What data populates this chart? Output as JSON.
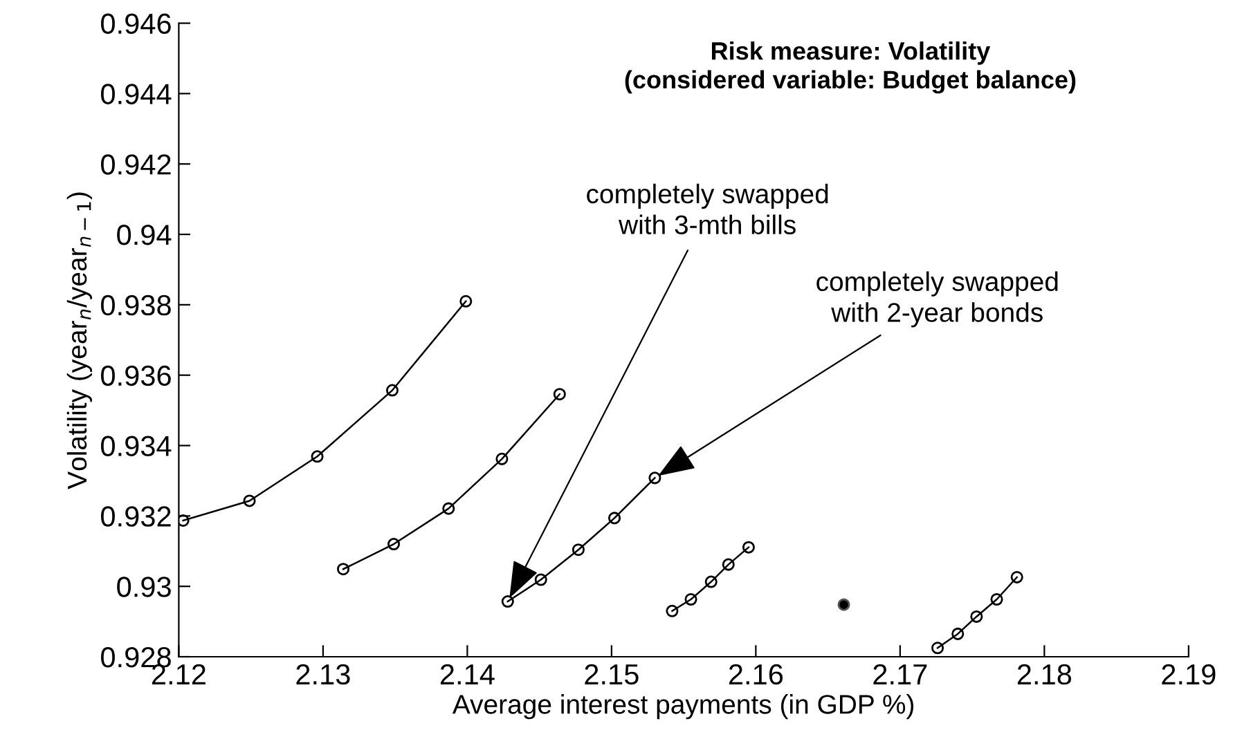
{
  "chart_data": {
    "type": "line",
    "title": "Risk measure: Volatility\n(considered variable: Budget balance)",
    "xlabel": "Average interest payments (in GDP %)",
    "ylabel": "Volatility (year$_{n}$/year$_{n−1}$)",
    "series": [
      {
        "color": "#000000",
        "x": [
          2.1203,
          2.1249,
          2.1296,
          2.1348,
          2.1399
        ],
        "values": [
          0.93187,
          0.93243,
          0.93369,
          0.93557,
          0.9381
        ]
      },
      {
        "color": "#000000",
        "x": [
          2.1314,
          2.1349,
          2.1387,
          2.1424,
          2.1464
        ],
        "values": [
          0.93049,
          0.9312,
          0.93221,
          0.93362,
          0.93546
        ]
      },
      {
        "color": "#000000",
        "x": [
          2.1428,
          2.1451,
          2.1477,
          2.1502,
          2.153
        ],
        "values": [
          0.92957,
          0.93019,
          0.93104,
          0.93194,
          0.93308
        ]
      },
      {
        "color": "#000000",
        "x": [
          2.1542,
          2.1555,
          2.1569,
          2.1581,
          2.1595
        ],
        "values": [
          0.9293,
          0.92963,
          0.93013,
          0.93062,
          0.93111
        ]
      },
      {
        "type": "scatter",
        "color": "#000000",
        "x": [
          2.1661
        ],
        "values": [
          0.92948
        ]
      },
      {
        "color": "#000000",
        "x": [
          2.1726,
          2.174,
          2.1753,
          2.1767,
          2.1781
        ],
        "values": [
          0.92825,
          0.92865,
          0.92914,
          0.92963,
          0.93026
        ]
      }
    ],
    "annotations": [
      {
        "text": "completely swapped\nwith 3-mth bills",
        "x": 2.1428,
        "y": 0.92957
      },
      {
        "text": "completely swapped\nwith 2-year bonds",
        "x": 2.153,
        "y": 0.93308
      }
    ],
    "marker": "circle",
    "grid": false,
    "xlim": [
      2.12,
      2.19
    ],
    "xticks": [
      2.12,
      2.13,
      2.14,
      2.15,
      2.16,
      2.17,
      2.18,
      2.19
    ],
    "ylim": [
      0.928,
      0.946
    ],
    "yticks": [
      0.928,
      0.93,
      0.932,
      0.934,
      0.936,
      0.938,
      0.94,
      0.942,
      0.944,
      0.946
    ]
  }
}
